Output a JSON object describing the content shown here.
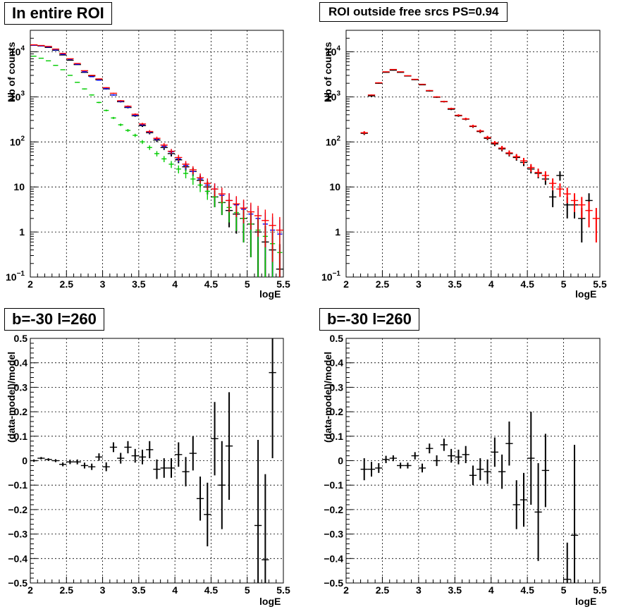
{
  "panels": [
    {
      "title": "In entire ROI"
    },
    {
      "title": "ROI outside free srcs PS=0.94"
    },
    {
      "title": "b=-30 l=260"
    },
    {
      "title": "b=-30 l=260"
    }
  ],
  "colors": {
    "data": "#000000",
    "model": "#ff0000",
    "blue": "#0000ff",
    "green": "#00cc00"
  },
  "chart_data": [
    {
      "type": "scatter",
      "title": "In entire ROI",
      "xlabel": "logE",
      "ylabel": "Nb of counts",
      "xlim": [
        2,
        5.5
      ],
      "ylim": [
        0.1,
        30000
      ],
      "yscale": "log",
      "grid": true,
      "xticks": [
        "2",
        "2.5",
        "3",
        "3.5",
        "4",
        "4.5",
        "5",
        "5.5"
      ],
      "yticks": [
        "10^-1",
        "1",
        "10",
        "10^2",
        "10^3",
        "10^4"
      ],
      "x": [
        2.05,
        2.15,
        2.25,
        2.35,
        2.45,
        2.55,
        2.65,
        2.75,
        2.85,
        2.95,
        3.05,
        3.15,
        3.25,
        3.35,
        3.45,
        3.55,
        3.65,
        3.75,
        3.85,
        3.95,
        4.05,
        4.15,
        4.25,
        4.35,
        4.45,
        4.55,
        4.65,
        4.75,
        4.85,
        4.95,
        5.05,
        5.15,
        5.25,
        5.35,
        5.45
      ],
      "series": [
        {
          "values": [
            14000,
            13500,
            12500,
            10800,
            8500,
            6500,
            5200,
            3500,
            2900,
            2400,
            1500,
            1100,
            780,
            580,
            380,
            230,
            160,
            110,
            75,
            55,
            40,
            28,
            22,
            14,
            10,
            6,
            4.5,
            3,
            2.5,
            2,
            1.5,
            1,
            0.6,
            0.4,
            0.15
          ]
        },
        {
          "values": [
            14000,
            13500,
            12800,
            11000,
            8800,
            6800,
            5300,
            3600,
            2800,
            2350,
            1520,
            1100,
            790,
            590,
            390,
            240,
            165,
            115,
            80,
            60,
            42,
            30,
            22,
            15,
            11,
            9,
            6.5,
            5,
            4,
            3.2,
            2.5,
            2,
            1.5,
            1.1,
            0.9
          ]
        },
        {
          "values": [
            8000,
            7200,
            6300,
            5000,
            4000,
            3000,
            2100,
            1500,
            1100,
            750,
            500,
            340,
            240,
            180,
            140,
            100,
            75,
            55,
            42,
            32,
            25,
            20,
            15,
            11,
            8,
            6,
            4.5,
            3.5,
            2.7,
            2,
            1.5,
            1.1,
            0.8,
            0.55,
            0.35
          ]
        },
        {
          "values": [
            14300,
            13800,
            13200,
            11500,
            9200,
            7000,
            5500,
            3800,
            3000,
            2500,
            1600,
            1200,
            820,
            620,
            410,
            250,
            170,
            120,
            85,
            62,
            45,
            32,
            24,
            16,
            12,
            9,
            7,
            5,
            4.2,
            3.4,
            2.8,
            2.3,
            1.8,
            1.4,
            1.1
          ]
        }
      ]
    },
    {
      "type": "scatter",
      "title": "ROI outside free srcs PS=0.94",
      "xlabel": "logE",
      "ylabel": "Nb of counts",
      "xlim": [
        2,
        5.5
      ],
      "ylim": [
        0.1,
        30000
      ],
      "yscale": "log",
      "grid": true,
      "xticks": [
        "2",
        "2.5",
        "3",
        "3.5",
        "4",
        "4.5",
        "5",
        "5.5"
      ],
      "yticks": [
        "10^-1",
        "1",
        "10",
        "10^2",
        "10^3",
        "10^4"
      ],
      "x": [
        2.25,
        2.35,
        2.45,
        2.55,
        2.65,
        2.75,
        2.85,
        2.95,
        3.05,
        3.15,
        3.25,
        3.35,
        3.45,
        3.55,
        3.65,
        3.75,
        3.85,
        3.95,
        4.05,
        4.15,
        4.25,
        4.35,
        4.45,
        4.55,
        4.65,
        4.75,
        4.85,
        4.95,
        5.05,
        5.15,
        5.25,
        5.35,
        5.45
      ],
      "series": [
        {
          "values": [
            155,
            1050,
            2000,
            3500,
            3900,
            3500,
            2900,
            2400,
            1850,
            1350,
            980,
            780,
            530,
            380,
            320,
            220,
            170,
            120,
            90,
            70,
            55,
            45,
            35,
            25,
            20,
            15,
            6,
            18,
            4,
            4,
            2,
            5,
            null
          ]
        },
        {
          "values": [
            160,
            1100,
            2050,
            3600,
            4050,
            3600,
            2950,
            2450,
            1900,
            1380,
            1000,
            790,
            550,
            390,
            325,
            225,
            175,
            125,
            95,
            73,
            57,
            47,
            38,
            27,
            21,
            18,
            12,
            9,
            7,
            5,
            4,
            3,
            2
          ]
        }
      ]
    },
    {
      "type": "scatter",
      "title": "b=-30 l=260",
      "xlabel": "logE",
      "ylabel": "(data-model)/model",
      "xlim": [
        2,
        5.5
      ],
      "ylim": [
        -0.5,
        0.5
      ],
      "grid": true,
      "xticks": [
        "2",
        "2.5",
        "3",
        "3.5",
        "4",
        "4.5",
        "5",
        "5.5"
      ],
      "yticks": [
        "-0.5",
        "-0.4",
        "-0.3",
        "-0.2",
        "-0.1",
        "0",
        "0.1",
        "0.2",
        "0.3",
        "0.4",
        "0.5"
      ],
      "x": [
        2.05,
        2.15,
        2.25,
        2.35,
        2.45,
        2.55,
        2.65,
        2.75,
        2.85,
        2.95,
        3.05,
        3.15,
        3.25,
        3.35,
        3.45,
        3.55,
        3.65,
        3.75,
        3.85,
        3.95,
        4.05,
        4.15,
        4.25,
        4.35,
        4.45,
        4.55,
        4.65,
        4.75,
        4.85,
        4.95,
        5.05,
        5.15,
        5.25,
        5.35,
        5.45
      ],
      "series": [
        {
          "values": [
            0.0,
            0.01,
            0.005,
            0.0,
            -0.015,
            -0.005,
            -0.005,
            -0.02,
            -0.025,
            0.015,
            -0.025,
            0.055,
            0.01,
            0.055,
            0.02,
            0.015,
            0.045,
            -0.035,
            -0.03,
            -0.03,
            0.025,
            -0.045,
            0.03,
            -0.155,
            -0.22,
            0.09,
            -0.1,
            0.06,
            null,
            null,
            null,
            -0.265,
            -0.405,
            0.36,
            null
          ],
          "errors": [
            0.005,
            0.005,
            0.005,
            0.006,
            0.008,
            0.009,
            0.01,
            0.012,
            0.013,
            0.015,
            0.018,
            0.02,
            0.022,
            0.025,
            0.028,
            0.03,
            0.035,
            0.04,
            0.04,
            0.04,
            0.05,
            0.06,
            0.07,
            0.09,
            0.13,
            0.15,
            0.18,
            0.22,
            null,
            null,
            null,
            0.35,
            0.35,
            0.35,
            null
          ]
        }
      ]
    },
    {
      "type": "scatter",
      "title": "b=-30 l=260",
      "xlabel": "logE",
      "ylabel": "(data-model)/model",
      "xlim": [
        2,
        5.5
      ],
      "ylim": [
        -0.5,
        0.5
      ],
      "grid": true,
      "xticks": [
        "2",
        "2.5",
        "3",
        "3.5",
        "4",
        "4.5",
        "5",
        "5.5"
      ],
      "yticks": [
        "-0.5",
        "-0.4",
        "-0.3",
        "-0.2",
        "-0.1",
        "0",
        "0.1",
        "0.2",
        "0.3",
        "0.4",
        "0.5"
      ],
      "x": [
        2.25,
        2.35,
        2.45,
        2.55,
        2.65,
        2.75,
        2.85,
        2.95,
        3.05,
        3.15,
        3.25,
        3.35,
        3.45,
        3.55,
        3.65,
        3.75,
        3.85,
        3.95,
        4.05,
        4.15,
        4.25,
        4.35,
        4.45,
        4.55,
        4.65,
        4.75,
        4.85,
        4.95,
        5.05,
        5.15
      ],
      "series": [
        {
          "values": [
            -0.035,
            -0.035,
            -0.03,
            0.005,
            0.01,
            -0.02,
            -0.02,
            0.02,
            -0.03,
            0.05,
            0.0,
            0.065,
            0.02,
            0.015,
            0.025,
            -0.06,
            -0.035,
            -0.045,
            0.035,
            -0.045,
            0.07,
            -0.18,
            -0.16,
            0.01,
            -0.21,
            -0.04,
            null,
            null,
            -0.485,
            -0.305
          ],
          "errors": [
            0.045,
            0.03,
            0.02,
            0.015,
            0.012,
            0.012,
            0.012,
            0.015,
            0.018,
            0.02,
            0.022,
            0.025,
            0.028,
            0.03,
            0.035,
            0.04,
            0.045,
            0.05,
            0.06,
            0.07,
            0.09,
            0.1,
            0.11,
            0.19,
            0.2,
            0.15,
            null,
            null,
            0.15,
            0.37
          ]
        }
      ]
    }
  ]
}
